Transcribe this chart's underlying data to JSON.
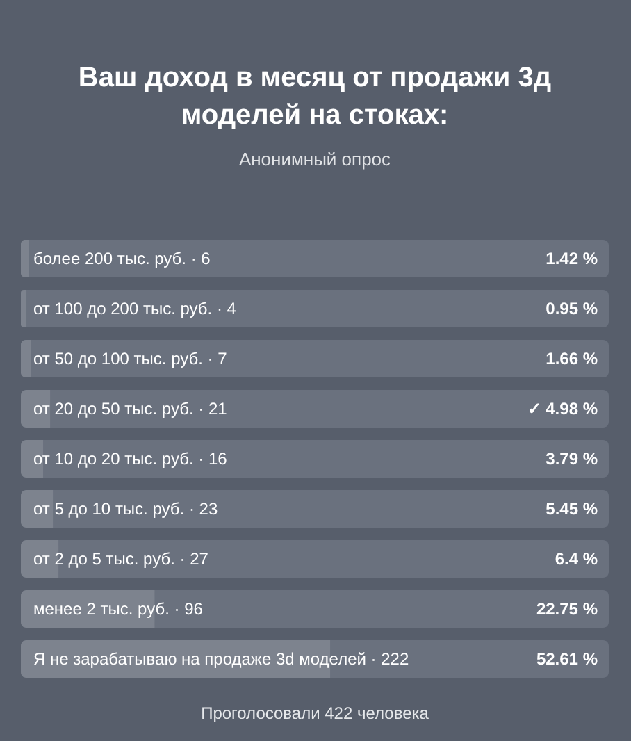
{
  "chart_data": {
    "type": "bar",
    "orientation": "horizontal",
    "title": "Ваш доход в месяц от продажи 3д моделей на стоках:",
    "subtitle": "Анонимный опрос",
    "categories": [
      "более 200 тыс. руб. · 6",
      "от 100 до 200 тыс. руб. · 4",
      "от 50 до 100 тыс. руб. · 7",
      "от 20 до 50 тыс. руб. · 21",
      "от 10 до 20 тыс. руб. · 16",
      "от 5 до 10 тыс. руб. · 23",
      "от 2 до 5 тыс. руб. · 27",
      "менее 2 тыс. руб. · 96",
      "Я не зарабатываю на продаже 3d моделей · 222"
    ],
    "values": [
      1.42,
      0.95,
      1.66,
      4.98,
      3.79,
      5.45,
      6.4,
      22.75,
      52.61
    ],
    "value_labels": [
      "1.42 %",
      "0.95 %",
      "1.66 %",
      "✓ 4.98 %",
      "3.79 %",
      "5.45 %",
      "6.4 %",
      "22.75 %",
      "52.61 %"
    ],
    "color": "#7d838e",
    "xlim": [
      0,
      100
    ],
    "tick_labels": "y",
    "annotations": [
      "Проголосовали 422 человека"
    ]
  }
}
